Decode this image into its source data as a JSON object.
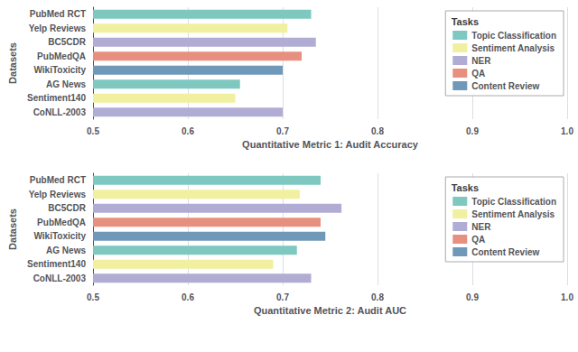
{
  "chart_data": [
    {
      "type": "bar",
      "orientation": "horizontal",
      "categories": [
        "PubMed RCT",
        "Yelp Reviews",
        "BC5CDR",
        "PubMedQA",
        "WikiToxicity",
        "AG News",
        "Sentiment140",
        "CoNLL-2003"
      ],
      "series": [
        {
          "name": "Topic Classification",
          "color": "#7ec8c0",
          "values": [
            0.73,
            null,
            null,
            null,
            null,
            0.655,
            null,
            null
          ]
        },
        {
          "name": "Sentiment Analysis",
          "color": "#f0f0a0",
          "values": [
            null,
            0.705,
            null,
            null,
            null,
            null,
            0.65,
            null
          ]
        },
        {
          "name": "NER",
          "color": "#b0acd4",
          "values": [
            null,
            null,
            0.735,
            null,
            null,
            null,
            null,
            0.7
          ]
        },
        {
          "name": "QA",
          "color": "#e89080",
          "values": [
            null,
            null,
            null,
            0.72,
            null,
            null,
            null,
            null
          ]
        },
        {
          "name": "Content Review",
          "color": "#7098b8",
          "values": [
            null,
            null,
            null,
            null,
            0.7,
            null,
            null,
            null
          ]
        }
      ],
      "xlabel": "Quantitative Metric 1: Audit Accuracy",
      "ylabel": "Datasets",
      "xlim": [
        0.5,
        1.0
      ],
      "xticks": [
        0.5,
        0.6,
        0.7,
        0.8,
        0.9,
        {
          "value": 1.0,
          "label": "1.0"
        }
      ],
      "grid": true,
      "legend": "upper right",
      "legend_title": "Tasks"
    },
    {
      "type": "bar",
      "orientation": "horizontal",
      "categories": [
        "PubMed RCT",
        "Yelp Reviews",
        "BC5CDR",
        "PubMedQA",
        "WikiToxicity",
        "AG News",
        "Sentiment140",
        "CoNLL-2003"
      ],
      "series": [
        {
          "name": "Topic Classification",
          "color": "#7ec8c0",
          "values": [
            0.74,
            null,
            null,
            null,
            null,
            0.715,
            null,
            null
          ]
        },
        {
          "name": "Sentiment Analysis",
          "color": "#f0f0a0",
          "values": [
            null,
            0.718,
            null,
            null,
            null,
            null,
            0.69,
            null
          ]
        },
        {
          "name": "NER",
          "color": "#b0acd4",
          "values": [
            null,
            null,
            0.762,
            null,
            null,
            null,
            null,
            0.73
          ]
        },
        {
          "name": "QA",
          "color": "#e89080",
          "values": [
            null,
            null,
            null,
            0.74,
            null,
            null,
            null,
            null
          ]
        },
        {
          "name": "Content Review",
          "color": "#7098b8",
          "values": [
            null,
            null,
            null,
            null,
            0.745,
            null,
            null,
            null
          ]
        }
      ],
      "xlabel": "Quantitative Metric 2: Audit AUC",
      "ylabel": "Datasets",
      "xlim": [
        0.5,
        1.0
      ],
      "xticks": [
        0.5,
        0.6,
        0.7,
        0.8,
        0.9,
        {
          "value": 1.0,
          "label": "1.0"
        }
      ],
      "grid": true,
      "legend": "upper right",
      "legend_title": "Tasks"
    }
  ]
}
